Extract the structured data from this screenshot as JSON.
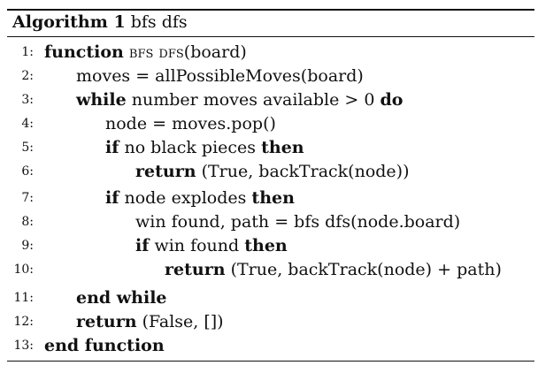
{
  "algorithm": {
    "label": "Algorithm 1",
    "title": "bfs dfs"
  },
  "lines": [
    {
      "num": "1:",
      "kw1": "function",
      "sc": "bfs dfs",
      "text": "(board)"
    },
    {
      "num": "2:",
      "text": "moves = allPossibleMoves(board)"
    },
    {
      "num": "3:",
      "kw1": "while",
      "text": "number moves available > 0",
      "kw2": "do"
    },
    {
      "num": "4:",
      "text": "node = moves.pop()"
    },
    {
      "num": "5:",
      "kw1": "if",
      "text": "no black pieces",
      "kw2": "then"
    },
    {
      "num": "6:",
      "kw1": "return",
      "text": "(True, backTrack(node))"
    },
    {
      "num": "7:",
      "kw1": "if",
      "text": "node explodes",
      "kw2": "then"
    },
    {
      "num": "8:",
      "text": "win found, path = bfs dfs(node.board)"
    },
    {
      "num": "9:",
      "kw1": "if",
      "text": "win found",
      "kw2": "then"
    },
    {
      "num": "10:",
      "kw1": "return",
      "text": "(True, backTrack(node) + path)"
    },
    {
      "num": "11:",
      "kw1": "end while"
    },
    {
      "num": "12:",
      "kw1": "return",
      "text": "(False, [])"
    },
    {
      "num": "13:",
      "kw1": "end function"
    }
  ]
}
